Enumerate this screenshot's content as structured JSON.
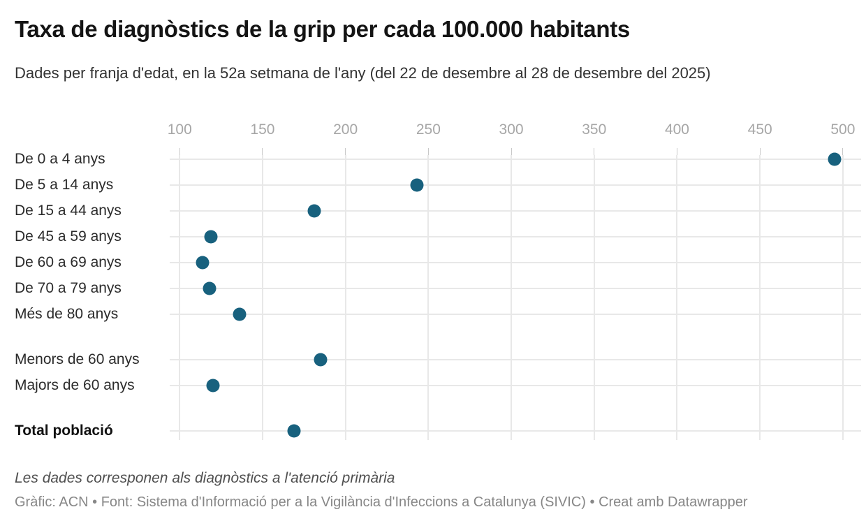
{
  "header": {
    "title": "Taxa de diagnòstics de la grip per cada 100.000 habitants",
    "subtitle": "Dades per franja d'edat, en la 52a setmana de l'any (del 22 de desembre al 28 de desembre del 2025)"
  },
  "chart_data": {
    "type": "scatter",
    "variant": "dot-plot",
    "title": "Taxa de diagnòstics de la grip per cada 100.000 habitants",
    "subtitle": "Dades per franja d'edat, en la 52a setmana de l'any (del 22 de desembre al 28 de desembre del 2025)",
    "categories": [
      "De 0 a 4 anys",
      "De 5 a 14 anys",
      "De 15 a 44 anys",
      "De 45 a 59 anys",
      "De 60 a 69 anys",
      "De 70 a 79 anys",
      "Més de 80 anys",
      "Menors de 60 anys",
      "Majors de 60 anys",
      "Total població"
    ],
    "values": [
      495,
      243,
      181,
      119,
      114,
      118,
      136,
      185,
      120,
      169
    ],
    "row_groups": [
      7,
      2,
      1
    ],
    "bold_rows": [
      9
    ],
    "axis_ticks": [
      100,
      150,
      200,
      250,
      300,
      350,
      400,
      450,
      500
    ],
    "xlim": [
      94,
      511
    ],
    "xlabel": "",
    "ylabel": "",
    "grid": true,
    "legend": "none",
    "axis_position": "top",
    "dot_color": "#18617e",
    "grid_color": "#e8e8e8",
    "tick_color": "#c9c9c9",
    "axis_label_color": "#a6a6a6"
  },
  "footer": {
    "note": "Les dades corresponen als diagnòstics a l'atenció primària",
    "attribution": "Gràfic: ACN • Font: Sistema d'Informació per a la Vigilància d'Infeccions a Catalunya (SIVIC) • Creat amb Datawrapper"
  }
}
